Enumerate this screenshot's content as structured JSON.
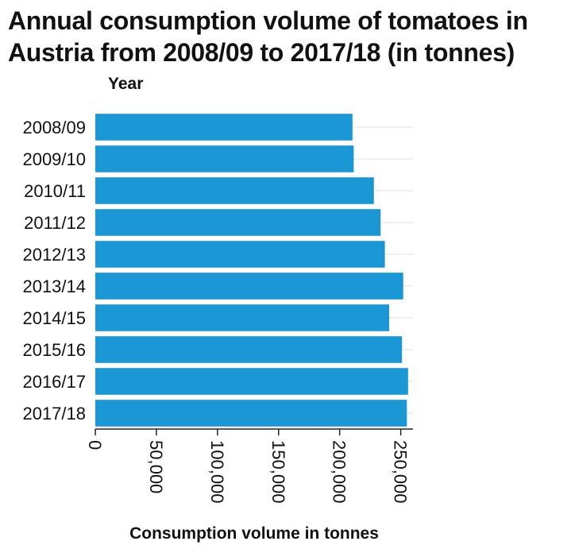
{
  "chart_data": {
    "type": "bar",
    "orientation": "horizontal",
    "title": "Annual consumption volume of tomatoes in Austria from 2008/09 to 2017/18 (in tonnes)",
    "xlabel": "Consumption volume in tonnes",
    "ylabel": "Year",
    "categories": [
      "2008/09",
      "2009/10",
      "2010/11",
      "2011/12",
      "2012/13",
      "2013/14",
      "2014/15",
      "2015/16",
      "2016/17",
      "2017/18"
    ],
    "values": [
      210500,
      211500,
      228000,
      233500,
      237000,
      252000,
      240500,
      251000,
      256000,
      255000
    ],
    "xlim": [
      0,
      260000
    ],
    "xticks": [
      0,
      50000,
      100000,
      150000,
      200000,
      250000
    ],
    "xtick_labels": [
      "0",
      "50,000",
      "100,000",
      "150,000",
      "200,000",
      "250,000"
    ],
    "grid": true,
    "bar_color": "#1a96d4",
    "grid_color": "#dddddd"
  }
}
